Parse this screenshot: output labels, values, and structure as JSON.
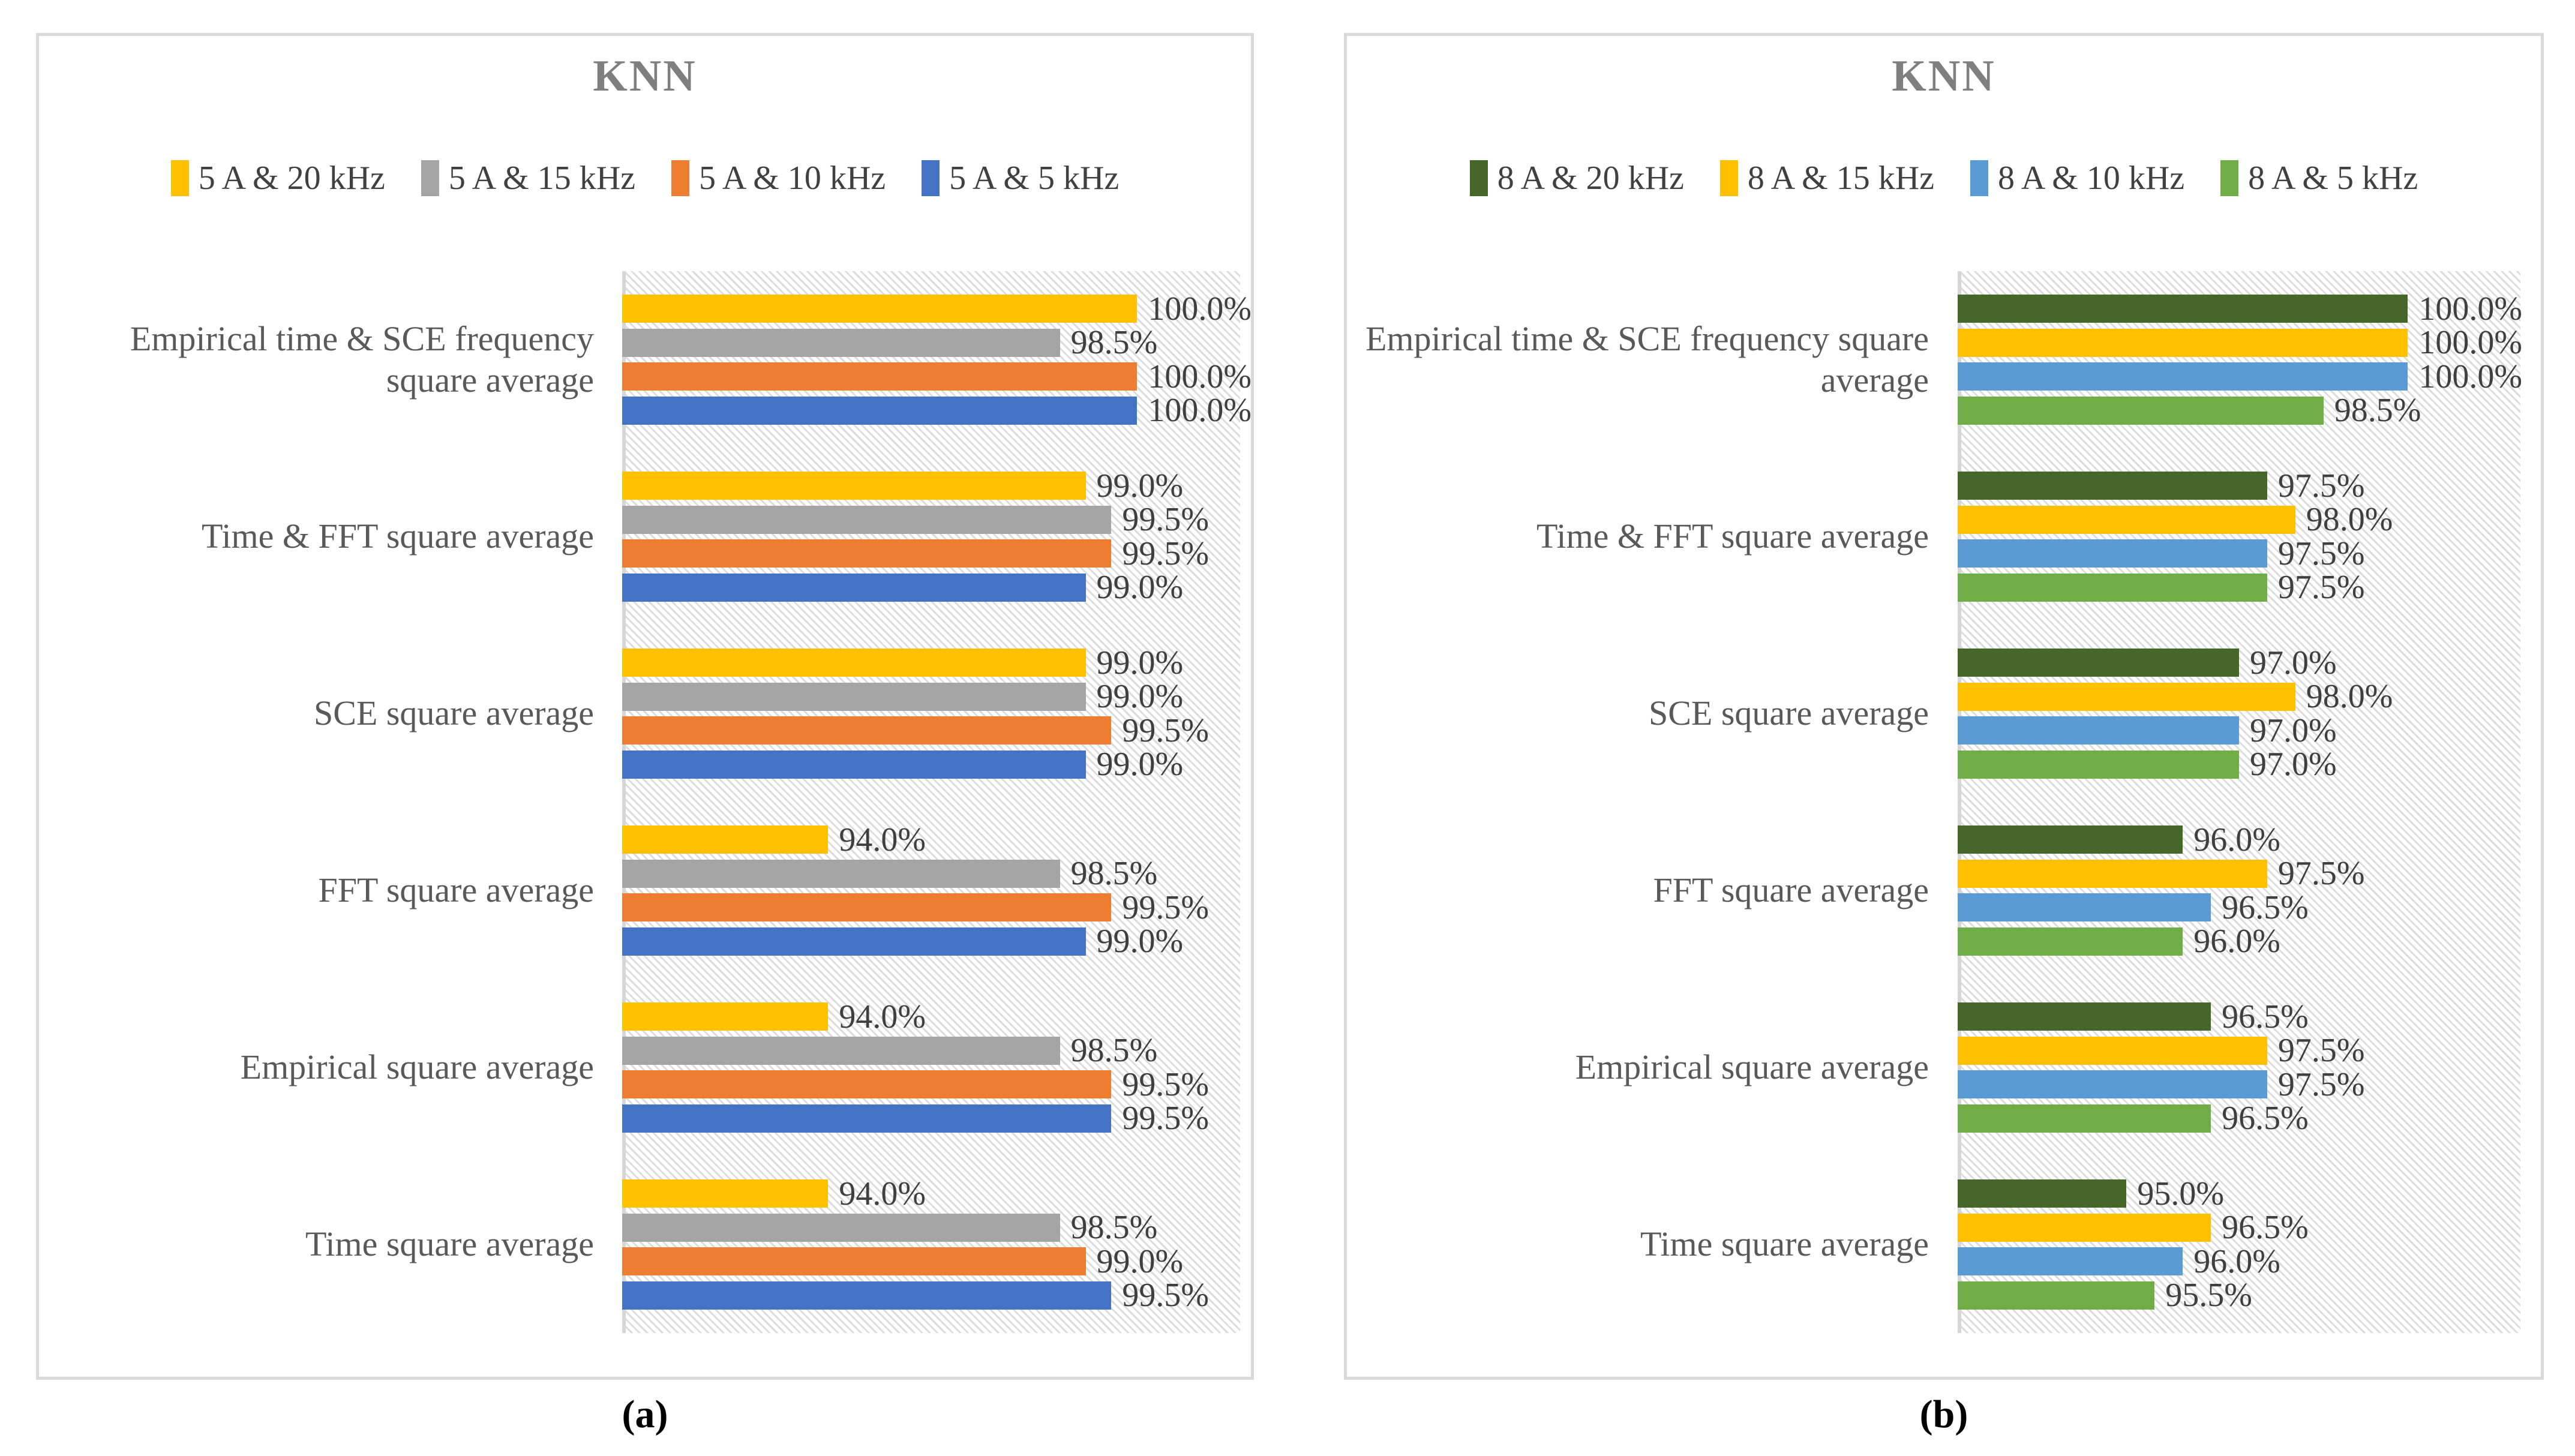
{
  "chart_data": [
    {
      "type": "bar",
      "orientation": "horizontal",
      "title": "KNN",
      "xlabel": "",
      "ylabel": "",
      "xlim": [
        90,
        102
      ],
      "grid": false,
      "legend_position": "top",
      "data_labels": true,
      "value_unit": "%",
      "plot_background": "diagonal-hatch",
      "title_color": "#7F7F7F",
      "categories": [
        "Empirical time & SCE frequency square average",
        "Time & FFT square average",
        "SCE square average",
        "FFT square average",
        "Empirical square average",
        "Time square average"
      ],
      "series": [
        {
          "name": "5 A & 20 kHz",
          "color": "#FFC000",
          "values": [
            100.0,
            99.0,
            99.0,
            94.0,
            94.0,
            94.0
          ]
        },
        {
          "name": "5 A & 15 kHz",
          "color": "#A5A5A5",
          "values": [
            98.5,
            99.5,
            99.0,
            98.5,
            98.5,
            98.5
          ]
        },
        {
          "name": "5 A & 10 kHz",
          "color": "#ED7D31",
          "values": [
            100.0,
            99.5,
            99.5,
            99.5,
            99.5,
            99.0
          ]
        },
        {
          "name": "5 A & 5 kHz",
          "color": "#4472C4",
          "values": [
            100.0,
            99.0,
            99.0,
            99.0,
            99.5,
            99.5
          ]
        }
      ]
    },
    {
      "type": "bar",
      "orientation": "horizontal",
      "title": "KNN",
      "xlabel": "",
      "ylabel": "",
      "xlim": [
        92,
        102
      ],
      "grid": false,
      "legend_position": "top",
      "data_labels": true,
      "value_unit": "%",
      "plot_background": "diagonal-hatch",
      "title_color": "#7F7F7F",
      "categories": [
        "Empirical time & SCE frequency square average",
        "Time & FFT square average",
        "SCE square average",
        "FFT square average",
        "Empirical square average",
        "Time square average"
      ],
      "series": [
        {
          "name": "8 A & 20 kHz",
          "color": "#45682A",
          "values": [
            100.0,
            97.5,
            97.0,
            96.0,
            96.5,
            95.0
          ]
        },
        {
          "name": "8 A & 15 kHz",
          "color": "#FFC000",
          "values": [
            100.0,
            98.0,
            98.0,
            97.5,
            97.5,
            96.5
          ]
        },
        {
          "name": "8 A & 10 kHz",
          "color": "#5B9BD5",
          "values": [
            100.0,
            97.5,
            97.0,
            96.5,
            97.5,
            96.0
          ]
        },
        {
          "name": "8 A & 5 kHz",
          "color": "#70AD47",
          "values": [
            98.5,
            97.5,
            97.0,
            96.0,
            96.5,
            95.5
          ]
        }
      ]
    }
  ],
  "panels": [
    {
      "caption": "(a)"
    },
    {
      "caption": "(b)"
    }
  ]
}
